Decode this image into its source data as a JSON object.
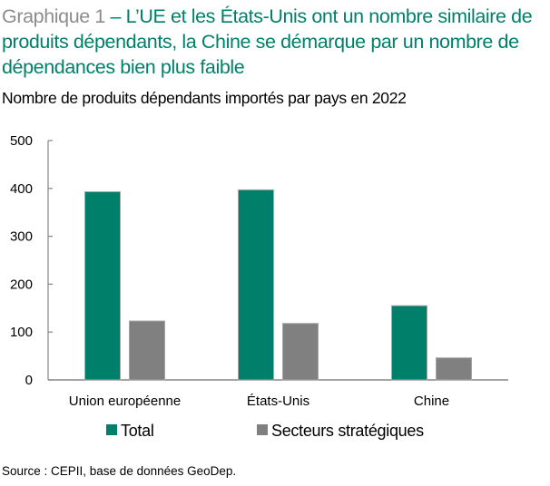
{
  "title": {
    "prefix": "Graphique 1",
    "text": " – L’UE et les États-Unis ont un nombre similaire de produits dépendants, la Chine se démarque par un nombre de dépendances bien plus faible"
  },
  "subtitle": "Nombre de produits dépendants importés par pays en 2022",
  "source": "Source : CEPII, base de données GeoDep.",
  "colors": {
    "total": "#00806a",
    "strategic": "#808080",
    "title_prefix": "#8c8c8c"
  },
  "chart_data": {
    "type": "bar",
    "title": "Nombre de produits dépendants importés par pays en 2022",
    "xlabel": "",
    "ylabel": "",
    "categories": [
      "Union européenne",
      "États-Unis",
      "Chine"
    ],
    "series": [
      {
        "name": "Total",
        "color": "#00806a",
        "values": [
          393,
          397,
          155
        ]
      },
      {
        "name": "Secteurs stratégiques",
        "color": "#808080",
        "values": [
          123,
          118,
          46
        ]
      }
    ],
    "ylim": [
      0,
      500
    ],
    "yticks": [
      0,
      100,
      200,
      300,
      400,
      500
    ],
    "grid": false,
    "legend": "bottom"
  }
}
